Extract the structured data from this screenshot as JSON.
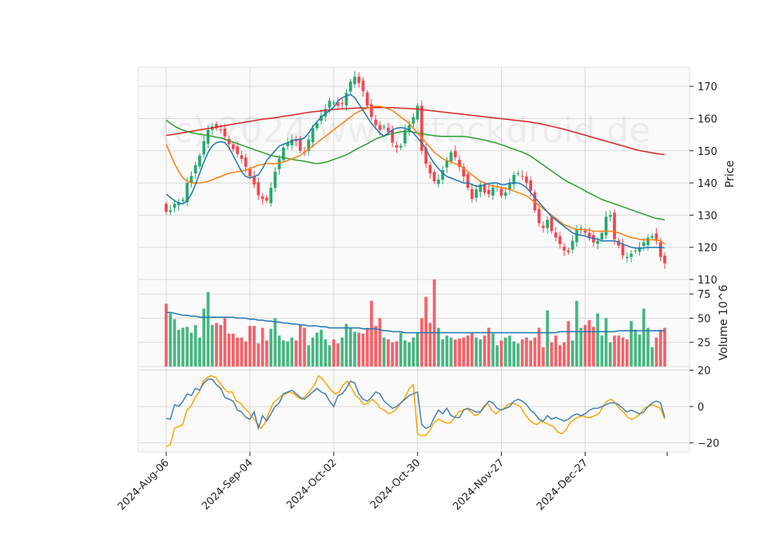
{
  "watermark": "(c) 2024 www.stockdroid.de",
  "colors": {
    "up": "#26a96c",
    "down": "#f5454e",
    "panel_bg": "#fafafa",
    "grid": "#d9d9d9",
    "ma_blue": "#1f77b4",
    "ma_orange": "#ff7f0e",
    "ma_green": "#2ca02c",
    "ma_red": "#d62728",
    "vol_ma": "#1f77b4",
    "osc_blue": "#4682b4",
    "osc_orange": "#ffa500"
  },
  "chart_data": {
    "type": "candlestick",
    "x_tick_labels": [
      "2024-Aug-06",
      "2024-Sep-04",
      "2024-Oct-02",
      "2024-Oct-30",
      "2024-Nov-27",
      "2024-Dec-27"
    ],
    "x_tick_index": [
      0,
      20,
      40,
      60,
      80,
      100
    ],
    "n_bars": 120,
    "price_panel": {
      "ylabel": "Price",
      "yticks": [
        110,
        120,
        130,
        140,
        150,
        160,
        170
      ],
      "ylim": [
        110,
        176
      ],
      "close": [
        131.0,
        131.5,
        133.5,
        134.0,
        134.8,
        140.0,
        142.2,
        145.5,
        148.5,
        153.0,
        156.5,
        157.5,
        157.0,
        156.5,
        154.5,
        152.0,
        150.5,
        149.0,
        147.5,
        145.0,
        142.0,
        139.5,
        136.2,
        135.0,
        134.5,
        138.5,
        143.5,
        147.5,
        151.0,
        152.5,
        153.5,
        153.0,
        150.0,
        149.5,
        153.5,
        157.0,
        158.5,
        161.0,
        163.0,
        165.5,
        165.0,
        164.0,
        164.5,
        168.0,
        171.5,
        173.0,
        171.0,
        168.5,
        164.0,
        160.5,
        158.0,
        156.5,
        157.5,
        156.0,
        152.5,
        151.0,
        151.5,
        156.5,
        158.0,
        160.5,
        164.0,
        150.0,
        146.0,
        143.0,
        140.5,
        141.0,
        144.0,
        147.0,
        149.5,
        148.0,
        145.0,
        142.0,
        138.5,
        135.0,
        138.0,
        139.5,
        137.0,
        136.5,
        138.5,
        139.0,
        136.0,
        137.0,
        140.0,
        142.5,
        143.0,
        142.0,
        140.0,
        137.5,
        131.5,
        127.5,
        126.0,
        128.5,
        125.0,
        123.0,
        121.0,
        119.0,
        118.5,
        122.0,
        125.5,
        126.0,
        124.5,
        123.0,
        121.5,
        122.0,
        124.5,
        129.5,
        130.0,
        122.5,
        120.5,
        117.5,
        117.0,
        118.0,
        119.0,
        120.0,
        121.5,
        123.0,
        123.5,
        122.0,
        117.0,
        115.0
      ],
      "candles_note": "OHLC derived in script from close series",
      "ma_blue": [
        136.5,
        135.5,
        134.5,
        133.8,
        133.5,
        134.5,
        136.5,
        139.5,
        143.0,
        146.5,
        149.5,
        151.5,
        152.5,
        152.8,
        152.5,
        151.0,
        148.5,
        146.0,
        143.5,
        142.0,
        141.5,
        142.0,
        142.5,
        144.5,
        147.0,
        148.5,
        150.0,
        151.5,
        152.0,
        152.5,
        153.0,
        153.5,
        153.5,
        154.0,
        155.5,
        157.5,
        159.0,
        160.5,
        161.5,
        162.5,
        163.5,
        165.5,
        166.5,
        167.0,
        167.5,
        166.5,
        164.5,
        162.5,
        160.5,
        158.5,
        157.0,
        155.5,
        154.5,
        155.5,
        156.5,
        157.0,
        157.2,
        157.0,
        156.5,
        155.5,
        154.0,
        152.5,
        150.5,
        148.0,
        146.0,
        144.5,
        143.0,
        142.0,
        141.5,
        141.0,
        140.5,
        140.0,
        140.0,
        139.5,
        139.0,
        139.0,
        139.5,
        139.8,
        140.0,
        140.0,
        139.5,
        139.5,
        140.0,
        140.0,
        140.0,
        139.5,
        138.5,
        137.0,
        135.5,
        134.0,
        132.5,
        131.0,
        129.5,
        128.5,
        127.5,
        126.5,
        125.5,
        124.5,
        124.0,
        123.8,
        123.5,
        123.0,
        122.8,
        122.5,
        122.0,
        122.0,
        122.0,
        122.0,
        121.5,
        121.0,
        120.5,
        120.0,
        119.8,
        119.7,
        119.8,
        120.0,
        120.0,
        120.0,
        120.0,
        119.8
      ],
      "ma_orange": [
        152.0,
        149.0,
        146.0,
        143.5,
        141.5,
        140.5,
        140.0,
        140.0,
        140.0,
        140.2,
        140.5,
        141.0,
        141.5,
        142.0,
        142.5,
        143.0,
        143.3,
        143.5,
        143.7,
        144.0,
        144.5,
        145.0,
        145.5,
        145.8,
        146.0,
        146.0,
        146.0,
        146.2,
        146.5,
        147.0,
        147.5,
        148.0,
        148.5,
        149.5,
        150.5,
        151.5,
        152.5,
        153.5,
        154.5,
        155.5,
        156.5,
        157.5,
        158.5,
        159.5,
        160.5,
        161.5,
        162.2,
        162.8,
        163.2,
        163.5,
        163.8,
        163.8,
        163.5,
        163.0,
        162.5,
        161.5,
        160.5,
        159.5,
        158.5,
        157.0,
        155.5,
        154.0,
        152.5,
        151.0,
        149.5,
        148.5,
        147.5,
        147.0,
        146.5,
        146.0,
        145.5,
        144.5,
        143.5,
        142.5,
        141.5,
        140.5,
        140.0,
        139.5,
        139.0,
        138.8,
        138.5,
        138.3,
        138.0,
        137.5,
        137.0,
        136.5,
        136.0,
        135.0,
        134.0,
        133.0,
        132.0,
        131.0,
        130.0,
        129.0,
        128.0,
        127.0,
        126.5,
        126.0,
        125.5,
        125.5,
        125.5,
        125.3,
        125.0,
        125.0,
        125.0,
        125.0,
        125.0,
        124.8,
        124.5,
        124.0,
        123.5,
        123.0,
        122.8,
        122.5,
        122.3,
        122.3,
        122.3,
        122.3,
        122.0,
        121.0
      ],
      "ma_green": [
        159.5,
        158.5,
        157.5,
        156.8,
        156.2,
        155.8,
        155.5,
        155.2,
        155.0,
        154.8,
        154.5,
        154.2,
        154.0,
        153.5,
        153.0,
        152.5,
        152.0,
        151.5,
        151.0,
        150.5,
        150.0,
        149.5,
        149.0,
        148.5,
        148.2,
        148.0,
        147.8,
        147.5,
        147.2,
        147.0,
        146.8,
        146.5,
        146.2,
        146.0,
        146.2,
        146.5,
        147.0,
        147.5,
        148.0,
        148.5,
        149.2,
        150.0,
        150.8,
        151.5,
        152.2,
        153.0,
        153.8,
        154.3,
        154.8,
        155.2,
        155.5,
        155.8,
        156.0,
        156.0,
        155.8,
        155.5,
        155.3,
        155.0,
        154.8,
        154.6,
        154.5,
        154.5,
        154.5,
        154.5,
        154.5,
        154.5,
        154.3,
        154.0,
        153.8,
        153.5,
        153.2,
        152.8,
        152.5,
        152.0,
        151.5,
        151.0,
        150.5,
        150.0,
        149.5,
        148.8,
        148.0,
        147.0,
        146.0,
        145.0,
        144.0,
        143.0,
        142.0,
        141.0,
        140.2,
        139.5,
        138.8,
        138.0,
        137.2,
        136.5,
        135.8,
        135.0,
        134.5,
        134.0,
        133.5,
        133.0,
        132.5,
        132.0,
        131.5,
        131.0,
        130.5,
        130.0,
        129.5,
        129.0,
        128.8,
        128.5
      ],
      "ma_red": [
        154.8,
        155.0,
        155.3,
        155.6,
        155.9,
        156.2,
        156.5,
        156.8,
        157.1,
        157.4,
        157.7,
        158.0,
        158.3,
        158.6,
        158.9,
        159.2,
        159.5,
        159.8,
        160.0,
        160.2,
        160.5,
        160.8,
        161.0,
        161.3,
        161.6,
        161.9,
        162.1,
        162.3,
        162.5,
        162.7,
        162.9,
        163.0,
        163.1,
        163.2,
        163.3,
        163.3,
        163.4,
        163.4,
        163.4,
        163.4,
        163.4,
        163.3,
        163.2,
        163.1,
        163.0,
        162.8,
        162.6,
        162.4,
        162.2,
        162.0,
        161.8,
        161.6,
        161.4,
        161.2,
        161.0,
        160.8,
        160.6,
        160.4,
        160.2,
        160.0,
        159.8,
        159.6,
        159.4,
        159.2,
        159.0,
        158.7,
        158.4,
        158.0,
        157.6,
        157.2,
        156.8,
        156.3,
        155.8,
        155.3,
        154.8,
        154.3,
        153.8,
        153.3,
        152.8,
        152.3,
        151.8,
        151.3,
        150.8,
        150.3,
        149.9,
        149.6,
        149.3,
        149.0,
        148.8
      ],
      "ma_red_start": 0
    },
    "volume_panel": {
      "ylabel": "Volume  10^6",
      "yticks": [
        25,
        50,
        75
      ],
      "ylim": [
        0,
        90
      ],
      "volume": [
        65,
        55,
        49,
        38,
        40,
        41,
        35,
        43,
        30,
        60,
        77,
        43,
        45,
        43,
        50,
        34,
        34,
        30,
        30,
        26,
        42,
        42,
        24,
        40,
        27,
        39,
        50,
        32,
        27,
        26,
        30,
        27,
        43,
        40,
        22,
        30,
        35,
        38,
        28,
        22,
        28,
        24,
        30,
        44,
        40,
        36,
        35,
        34,
        40,
        68,
        42,
        50,
        30,
        28,
        25,
        26,
        35,
        27,
        25,
        30,
        35,
        50,
        72,
        45,
        90,
        40,
        28,
        32,
        30,
        28,
        29,
        30,
        32,
        35,
        30,
        28,
        32,
        40,
        34,
        22,
        27,
        30,
        32,
        26,
        24,
        28,
        30,
        27,
        30,
        40,
        20,
        58,
        25,
        32,
        22,
        25,
        47,
        27,
        68,
        40,
        43,
        48,
        41,
        55,
        32,
        50,
        25,
        32,
        32,
        30,
        28,
        47,
        38,
        33,
        60,
        40,
        20,
        30,
        38,
        40
      ],
      "vol_ma": [
        56,
        56,
        55,
        54,
        53,
        53,
        52,
        52,
        51,
        51,
        51,
        51,
        51,
        51,
        51,
        51,
        51,
        50,
        50,
        50,
        49,
        49,
        48,
        48,
        47,
        47,
        46,
        46,
        45,
        45,
        44,
        44,
        43,
        43,
        42,
        42,
        42,
        41,
        41,
        40,
        40,
        40,
        40,
        40,
        40,
        40,
        40,
        39,
        39,
        39,
        39,
        38,
        37,
        37,
        36,
        36,
        36,
        35,
        35,
        35,
        35,
        35,
        35,
        35,
        35,
        35,
        35,
        35,
        35,
        35,
        35,
        35,
        35,
        35,
        35,
        35,
        35,
        35,
        35,
        35,
        35,
        35,
        35,
        35,
        35,
        35,
        35,
        35,
        35,
        35,
        35,
        35,
        35,
        35,
        36,
        36,
        36,
        36,
        36,
        36,
        36,
        36,
        36,
        36,
        36,
        36,
        36,
        36,
        37,
        37,
        37,
        37,
        37,
        37,
        37,
        37,
        37,
        37,
        37,
        37
      ]
    },
    "oscillator_panel": {
      "yticks": [
        -20,
        0,
        20
      ],
      "ylim": [
        -25,
        22
      ],
      "blue_line": [
        -6.5,
        -7,
        1,
        0,
        3,
        7,
        6,
        10,
        9,
        13,
        15,
        15,
        12,
        10,
        5,
        4,
        3,
        -2,
        -3,
        -6,
        -7,
        -3,
        -12,
        -5,
        -8,
        -4,
        0,
        2,
        7,
        8,
        9,
        7,
        5,
        4,
        6,
        8,
        10,
        8,
        7,
        3,
        0,
        6,
        7,
        10,
        14,
        13,
        7,
        4,
        3,
        5,
        8,
        7,
        3,
        1,
        -1,
        0,
        2,
        4,
        6,
        7,
        8,
        -10,
        -12,
        -11,
        -6,
        -2,
        -4,
        -1,
        -5,
        -6,
        -6,
        -2,
        -1,
        -2,
        -3,
        -3,
        0,
        3,
        2,
        -1,
        -2,
        -1,
        0,
        3,
        4,
        3,
        1,
        -2,
        -4,
        -7,
        -8,
        -5,
        -7,
        -6,
        -7,
        -8,
        -7,
        -5,
        -4,
        -5,
        -4,
        -2,
        -1,
        -1,
        0,
        1,
        2,
        2,
        1,
        -1,
        -3,
        -2,
        -3,
        -4,
        -3,
        0,
        2,
        3,
        2,
        -6
      ],
      "orange_line": [
        -22,
        -21,
        -12,
        -11,
        -10,
        -2,
        0,
        5,
        8,
        14,
        16,
        17,
        16,
        13,
        10,
        8,
        8,
        3,
        2,
        -1,
        -3,
        -6,
        -9,
        -12,
        -9,
        -3,
        2,
        4,
        6,
        7,
        8,
        7,
        5,
        4,
        6,
        9,
        12,
        17,
        15,
        12,
        9,
        7,
        8,
        12,
        14,
        10,
        6,
        4,
        1,
        2,
        4,
        2,
        -1,
        -2,
        -4,
        -3,
        -1,
        2,
        5,
        10,
        12,
        -15,
        -16,
        -16,
        -13,
        -9,
        -7,
        -8,
        -9,
        -9,
        -6,
        -3,
        -2,
        -1,
        -3,
        -5,
        -4,
        0,
        2,
        -2,
        -4,
        -2,
        -1,
        1,
        2,
        1,
        0,
        -4,
        -7,
        -9,
        -10,
        -8,
        -9,
        -10,
        -11,
        -14,
        -15,
        -13,
        -9,
        -7,
        -6,
        -5,
        -6,
        -6,
        -5,
        -4,
        0,
        3,
        4,
        2,
        -1,
        -3,
        -6,
        -7,
        -6,
        -4,
        -1,
        0,
        1,
        0,
        -1,
        -7
      ]
    }
  }
}
